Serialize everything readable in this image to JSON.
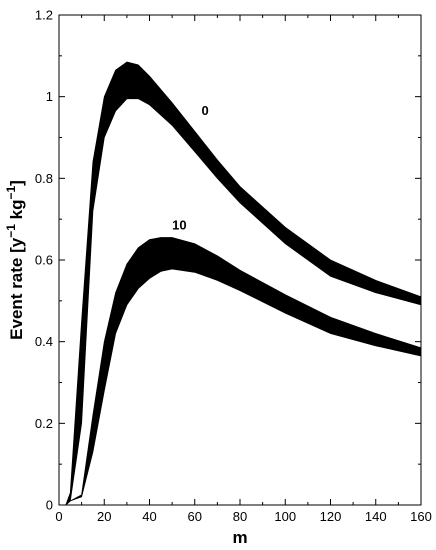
{
  "chart_data": {
    "type": "area",
    "xlabel": "m",
    "ylabel": {
      "prefix": "Event rate [y",
      "sup1": "−1",
      "mid": " kg",
      "sup2": "−1",
      "suffix": "]"
    },
    "xlim": [
      0,
      160
    ],
    "ylim": [
      0,
      1.2
    ],
    "xticks": [
      0,
      20,
      40,
      60,
      80,
      100,
      120,
      140,
      160
    ],
    "yticks": [
      0,
      0.2,
      0.4,
      0.6,
      0.8,
      1,
      1.2
    ],
    "grid": false,
    "fill_color": "#000000",
    "series": [
      {
        "label": "0",
        "label_at": [
          63,
          0.955
        ],
        "x": [
          3,
          5,
          10,
          15,
          20,
          25,
          30,
          35,
          40,
          50,
          60,
          70,
          80,
          100,
          120,
          140,
          160
        ],
        "upper": [
          0.0,
          0.03,
          0.45,
          0.84,
          1.0,
          1.065,
          1.085,
          1.078,
          1.05,
          0.985,
          0.915,
          0.845,
          0.78,
          0.68,
          0.6,
          0.55,
          0.51
        ],
        "lower": [
          0.0,
          0.01,
          0.2,
          0.72,
          0.9,
          0.965,
          0.995,
          0.995,
          0.98,
          0.93,
          0.865,
          0.8,
          0.74,
          0.64,
          0.56,
          0.52,
          0.49
        ]
      },
      {
        "label": "10",
        "label_at": [
          50,
          0.675
        ],
        "x": [
          3,
          5,
          10,
          15,
          20,
          25,
          30,
          35,
          40,
          45,
          50,
          60,
          70,
          80,
          100,
          120,
          140,
          160
        ],
        "upper": [
          0.0,
          0.01,
          0.025,
          0.22,
          0.4,
          0.52,
          0.59,
          0.63,
          0.65,
          0.655,
          0.655,
          0.64,
          0.61,
          0.575,
          0.515,
          0.46,
          0.42,
          0.385
        ],
        "lower": [
          0.0,
          0.01,
          0.02,
          0.13,
          0.28,
          0.42,
          0.49,
          0.53,
          0.555,
          0.572,
          0.578,
          0.57,
          0.55,
          0.525,
          0.47,
          0.42,
          0.39,
          0.365
        ]
      }
    ]
  }
}
